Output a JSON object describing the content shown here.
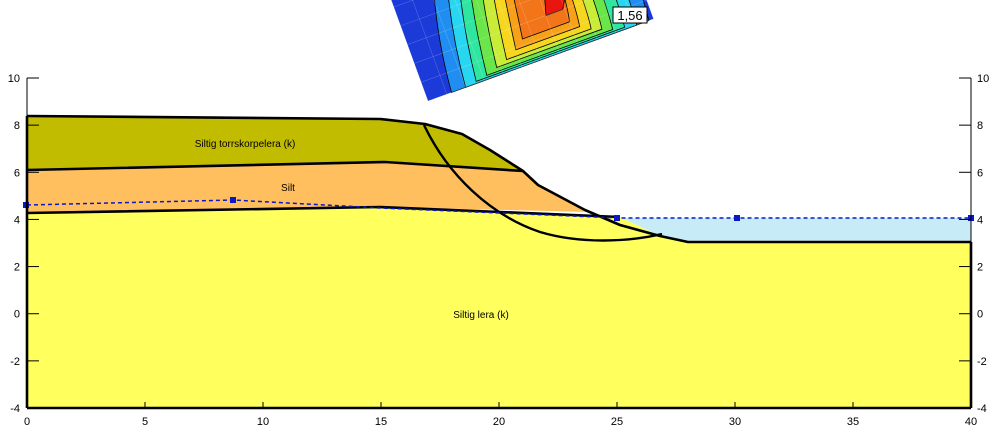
{
  "diagram": {
    "x_axis": {
      "min": 0,
      "max": 40,
      "ticks": [
        "0",
        "5",
        "10",
        "15",
        "20",
        "25",
        "30",
        "35",
        "40"
      ]
    },
    "y_axis": {
      "min": -4,
      "max": 10,
      "ticks": [
        "-4",
        "-2",
        "0",
        "2",
        "4",
        "6",
        "8",
        "10"
      ]
    },
    "safety_factor_label": "1,56",
    "layers": [
      {
        "name": "Siltig torrskorpelera (k)",
        "color": "#c2bc00"
      },
      {
        "name": "Silt",
        "color": "#ffbf5e"
      },
      {
        "name": "Siltig lera (k)",
        "color": "#ffff5e"
      }
    ],
    "water_color": "#c8ecf7",
    "water_line_color": "#0a18c8",
    "contour_colors": [
      "#1b3ad8",
      "#1f8ef0",
      "#28d6f0",
      "#2fe6a0",
      "#6ae64a",
      "#c8ec38",
      "#f6d61e",
      "#f7a11a",
      "#f2751a",
      "#e8160f"
    ]
  }
}
